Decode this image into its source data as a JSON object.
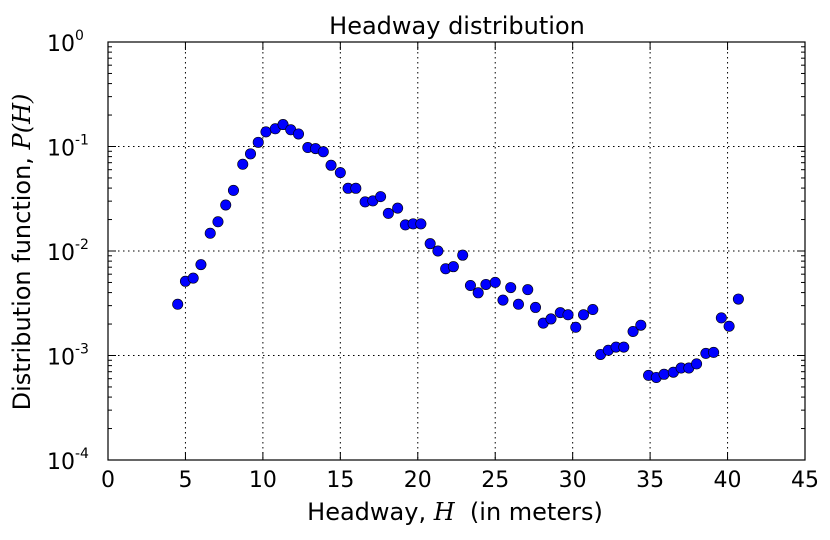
{
  "chart_data": {
    "type": "scatter",
    "title": "Headway distribution",
    "xlabel": {
      "prefix": "Headway, ",
      "symbol": "H",
      "suffix": "  (in meters)"
    },
    "ylabel": {
      "prefix": "Distribution function, ",
      "symbol": "P(H)"
    },
    "xlim": [
      0,
      45
    ],
    "ylim": [
      0.0001,
      1
    ],
    "yscale": "log",
    "grid": true,
    "x_ticks": [
      {
        "value": 0,
        "label": "0"
      },
      {
        "value": 5,
        "label": "5"
      },
      {
        "value": 10,
        "label": "10"
      },
      {
        "value": 15,
        "label": "15"
      },
      {
        "value": 20,
        "label": "20"
      },
      {
        "value": 25,
        "label": "25"
      },
      {
        "value": 30,
        "label": "30"
      },
      {
        "value": 35,
        "label": "35"
      },
      {
        "value": 40,
        "label": "40"
      },
      {
        "value": 45,
        "label": "45"
      }
    ],
    "y_ticks": [
      {
        "value": 1,
        "base": "10",
        "exp": "0"
      },
      {
        "value": 0.1,
        "base": "10",
        "exp": "-1"
      },
      {
        "value": 0.01,
        "base": "10",
        "exp": "-2"
      },
      {
        "value": 0.001,
        "base": "10",
        "exp": "-3"
      },
      {
        "value": 0.0001,
        "base": "10",
        "exp": "-4"
      }
    ],
    "marker_color": "#0000ff",
    "x": [
      4.5,
      5.0,
      5.5,
      6.0,
      6.6,
      7.1,
      7.6,
      8.1,
      8.7,
      9.2,
      9.7,
      10.2,
      10.8,
      11.3,
      11.8,
      12.3,
      12.9,
      13.4,
      13.9,
      14.4,
      15.0,
      15.5,
      16.0,
      16.6,
      17.1,
      17.6,
      18.1,
      18.7,
      19.2,
      19.7,
      20.2,
      20.8,
      21.3,
      21.8,
      22.3,
      22.9,
      23.4,
      23.9,
      24.4,
      25.0,
      25.5,
      26.0,
      26.5,
      27.1,
      27.6,
      28.1,
      28.6,
      29.2,
      29.7,
      30.2,
      30.7,
      31.3,
      31.8,
      32.3,
      32.8,
      33.3,
      33.9,
      34.4,
      34.9,
      35.4,
      35.9,
      36.5,
      37.0,
      37.5,
      38.0,
      38.6,
      39.1,
      39.6,
      40.1,
      40.7
    ]
  }
}
